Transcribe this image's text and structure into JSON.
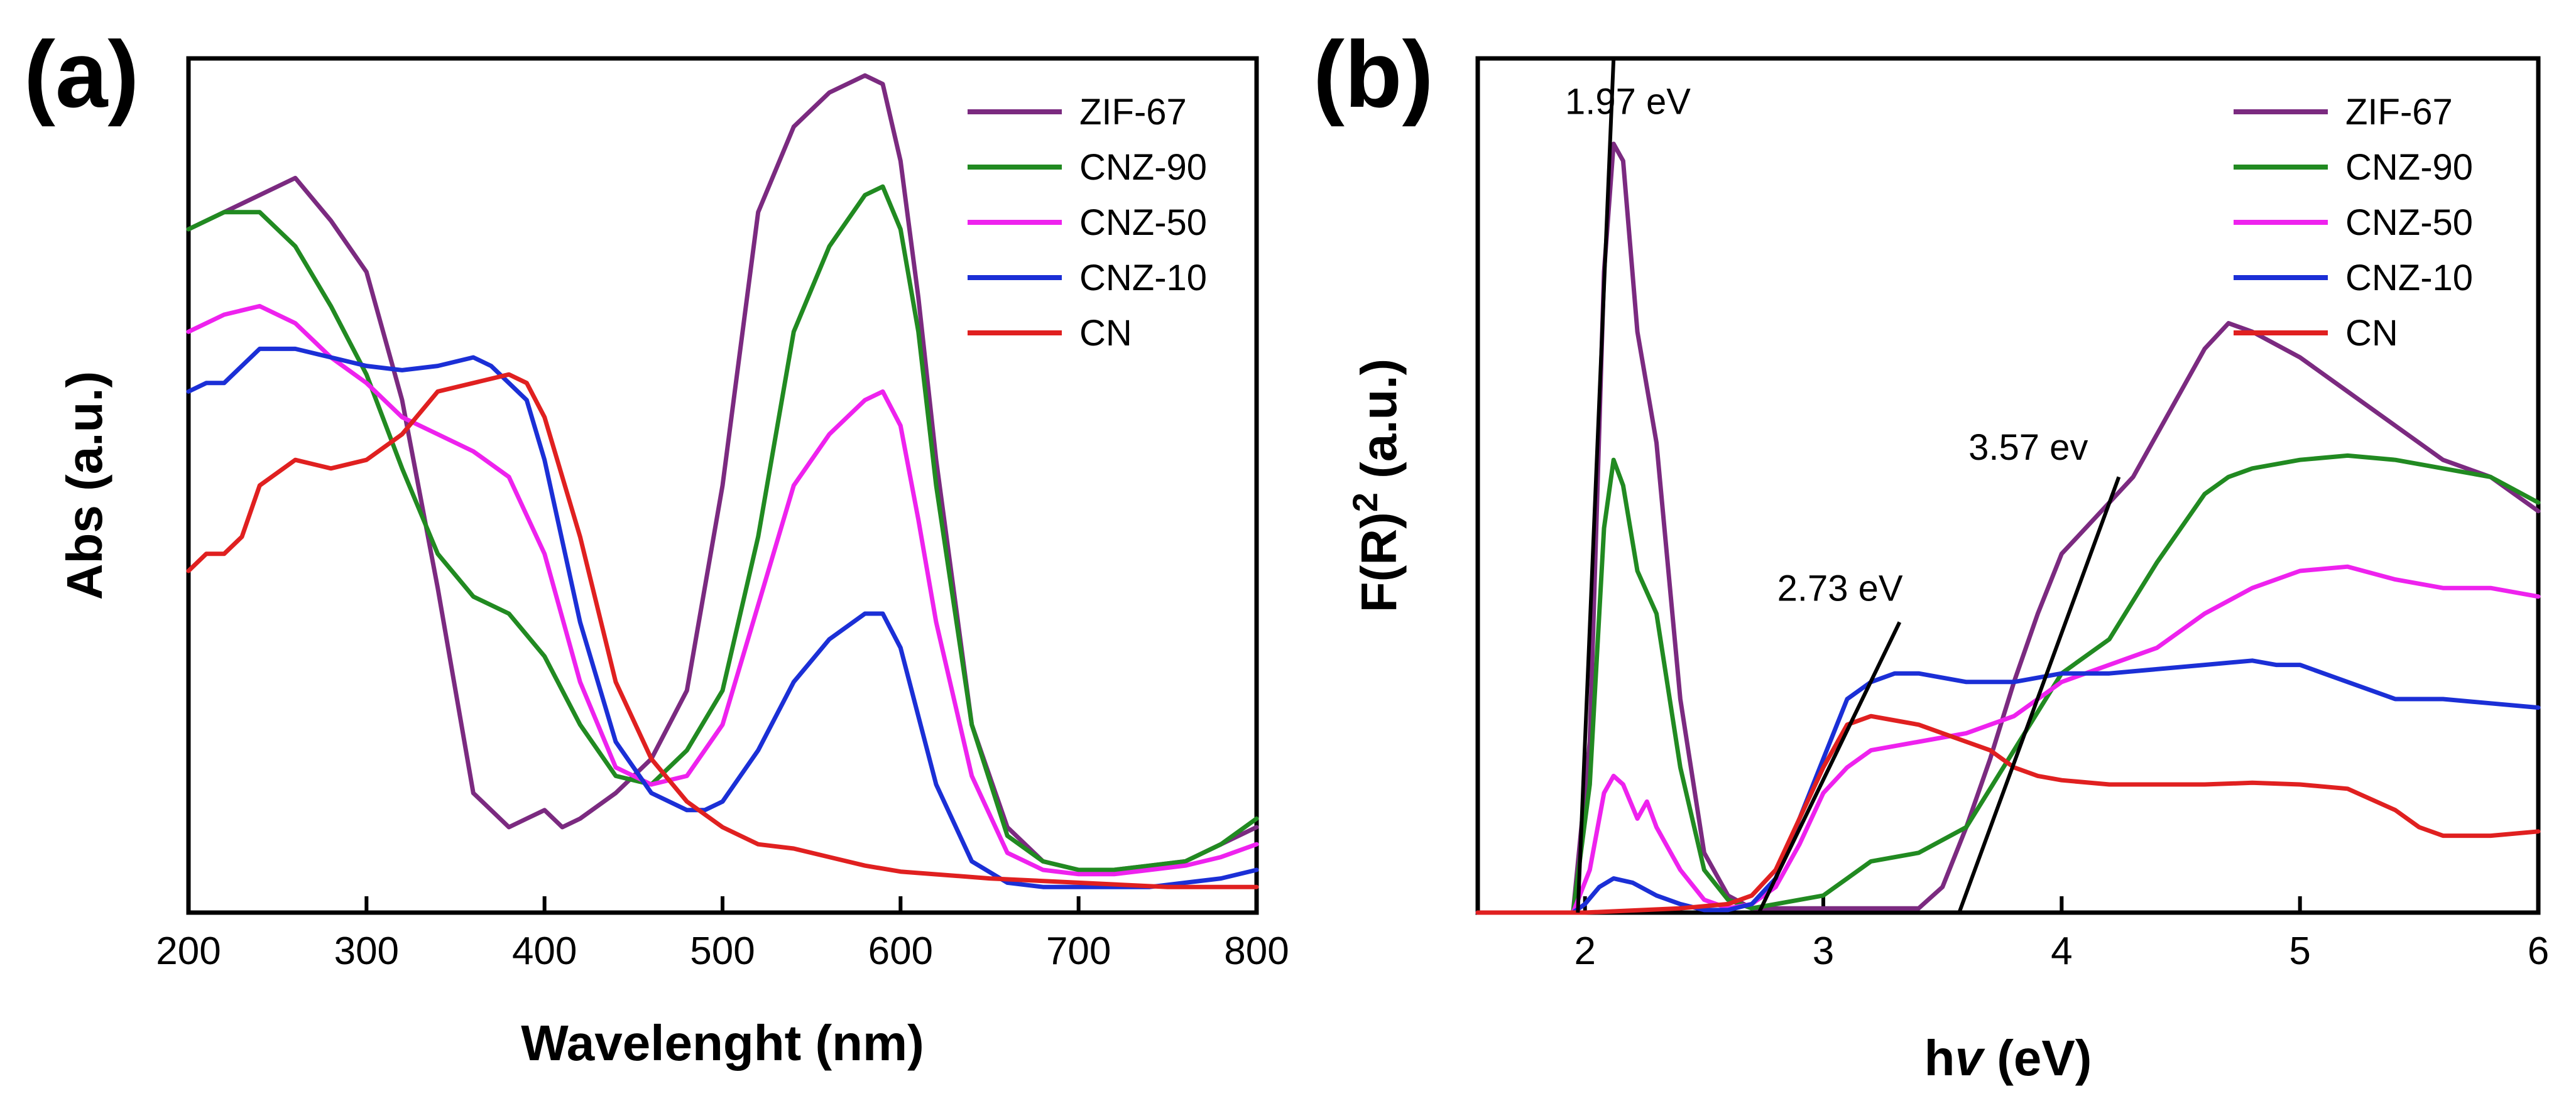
{
  "chart_data": [
    {
      "panel": "(a)",
      "type": "line",
      "xlabel": "Wavelenght (nm)",
      "ylabel": "Abs (a.u.)",
      "xlim": [
        200,
        800
      ],
      "ylim": [
        0,
        1.0
      ],
      "xticks": [
        200,
        300,
        400,
        500,
        600,
        700,
        800
      ],
      "legend_position": "top-right",
      "series": [
        {
          "name": "ZIF-67",
          "color": "#7b2a80",
          "x": [
            200,
            230,
            260,
            280,
            300,
            320,
            340,
            360,
            380,
            390,
            400,
            410,
            420,
            440,
            460,
            480,
            500,
            520,
            540,
            560,
            580,
            590,
            600,
            610,
            620,
            640,
            660,
            680,
            700,
            720,
            740,
            760,
            780,
            800
          ],
          "y": [
            0.8,
            0.83,
            0.86,
            0.81,
            0.75,
            0.6,
            0.38,
            0.14,
            0.1,
            0.11,
            0.12,
            0.1,
            0.11,
            0.14,
            0.18,
            0.26,
            0.5,
            0.82,
            0.92,
            0.96,
            0.98,
            0.97,
            0.88,
            0.72,
            0.53,
            0.22,
            0.1,
            0.06,
            0.05,
            0.05,
            0.055,
            0.06,
            0.08,
            0.1
          ]
        },
        {
          "name": "CNZ-90",
          "color": "#218a21",
          "x": [
            200,
            220,
            240,
            260,
            280,
            300,
            320,
            340,
            360,
            380,
            400,
            420,
            440,
            460,
            480,
            500,
            520,
            540,
            560,
            580,
            590,
            600,
            610,
            620,
            640,
            660,
            680,
            700,
            720,
            740,
            760,
            780,
            800
          ],
          "y": [
            0.8,
            0.82,
            0.82,
            0.78,
            0.71,
            0.63,
            0.52,
            0.42,
            0.37,
            0.35,
            0.3,
            0.22,
            0.16,
            0.15,
            0.19,
            0.26,
            0.44,
            0.68,
            0.78,
            0.84,
            0.85,
            0.8,
            0.68,
            0.5,
            0.22,
            0.09,
            0.06,
            0.05,
            0.05,
            0.055,
            0.06,
            0.08,
            0.11
          ]
        },
        {
          "name": "CNZ-50",
          "color": "#ee22ee",
          "x": [
            200,
            220,
            240,
            260,
            280,
            300,
            320,
            340,
            360,
            380,
            400,
            420,
            440,
            460,
            480,
            500,
            520,
            540,
            560,
            580,
            590,
            600,
            610,
            620,
            640,
            660,
            680,
            700,
            720,
            740,
            760,
            780,
            800
          ],
          "y": [
            0.68,
            0.7,
            0.71,
            0.69,
            0.65,
            0.62,
            0.58,
            0.56,
            0.54,
            0.51,
            0.42,
            0.27,
            0.17,
            0.15,
            0.16,
            0.22,
            0.36,
            0.5,
            0.56,
            0.6,
            0.61,
            0.57,
            0.46,
            0.34,
            0.16,
            0.07,
            0.05,
            0.045,
            0.045,
            0.05,
            0.055,
            0.065,
            0.08
          ]
        },
        {
          "name": "CNZ-10",
          "color": "#1b2fd6",
          "x": [
            200,
            210,
            220,
            240,
            260,
            280,
            300,
            320,
            340,
            360,
            370,
            380,
            390,
            400,
            420,
            440,
            460,
            480,
            490,
            500,
            520,
            540,
            560,
            580,
            590,
            600,
            620,
            640,
            660,
            680,
            700,
            720,
            740,
            760,
            780,
            800
          ],
          "y": [
            0.61,
            0.62,
            0.62,
            0.66,
            0.66,
            0.65,
            0.64,
            0.635,
            0.64,
            0.65,
            0.64,
            0.62,
            0.6,
            0.53,
            0.34,
            0.2,
            0.14,
            0.12,
            0.12,
            0.13,
            0.19,
            0.27,
            0.32,
            0.35,
            0.35,
            0.31,
            0.15,
            0.06,
            0.035,
            0.03,
            0.03,
            0.03,
            0.03,
            0.035,
            0.04,
            0.05
          ]
        },
        {
          "name": "CN",
          "color": "#e02020",
          "x": [
            200,
            210,
            220,
            230,
            240,
            260,
            280,
            300,
            320,
            340,
            360,
            380,
            390,
            400,
            420,
            440,
            460,
            480,
            500,
            520,
            540,
            560,
            580,
            600,
            650,
            700,
            750,
            800
          ],
          "y": [
            0.4,
            0.42,
            0.42,
            0.44,
            0.5,
            0.53,
            0.52,
            0.53,
            0.56,
            0.61,
            0.62,
            0.63,
            0.62,
            0.58,
            0.44,
            0.27,
            0.18,
            0.13,
            0.1,
            0.08,
            0.075,
            0.065,
            0.055,
            0.048,
            0.04,
            0.035,
            0.03,
            0.03
          ]
        }
      ]
    },
    {
      "panel": "(b)",
      "type": "line",
      "xlabel_main": "h",
      "xlabel_symbol": "v",
      "xlabel_unit": " (eV)",
      "ylabel_main": "F(R)",
      "ylabel_sup": "2",
      "ylabel_unit": " (a.u.)",
      "xlim": [
        1.55,
        6.0
      ],
      "ylim": [
        0,
        1.0
      ],
      "xticks": [
        2,
        3,
        4,
        5,
        6
      ],
      "legend_position": "top-right",
      "annotations": [
        {
          "text": "1.97 eV",
          "at": [
            2.18,
            0.935
          ]
        },
        {
          "text": "2.73 eV",
          "at": [
            3.07,
            0.365
          ]
        },
        {
          "text": "3.57 ev",
          "at": [
            3.86,
            0.53
          ]
        }
      ],
      "tangent_lines": [
        {
          "label": "1.97 eV",
          "x": [
            1.97,
            2.12
          ],
          "y": [
            0.0,
            1.0
          ]
        },
        {
          "label": "2.73 eV",
          "x": [
            2.73,
            3.32
          ],
          "y": [
            0.0,
            0.34
          ]
        },
        {
          "label": "3.57 ev",
          "x": [
            3.57,
            4.24
          ],
          "y": [
            0.0,
            0.51
          ]
        }
      ],
      "series": [
        {
          "name": "ZIF-67",
          "color": "#7b2a80",
          "x": [
            1.55,
            1.95,
            2.02,
            2.08,
            2.12,
            2.16,
            2.22,
            2.3,
            2.4,
            2.5,
            2.6,
            2.7,
            3.0,
            3.4,
            3.5,
            3.6,
            3.7,
            3.8,
            3.9,
            4.0,
            4.1,
            4.2,
            4.3,
            4.4,
            4.5,
            4.6,
            4.7,
            4.8,
            5.0,
            5.2,
            5.4,
            5.6,
            5.8,
            6.0
          ],
          "y": [
            0.0,
            0.0,
            0.2,
            0.75,
            0.9,
            0.88,
            0.68,
            0.55,
            0.25,
            0.07,
            0.02,
            0.005,
            0.005,
            0.005,
            0.03,
            0.1,
            0.18,
            0.27,
            0.35,
            0.42,
            0.45,
            0.48,
            0.51,
            0.56,
            0.61,
            0.66,
            0.69,
            0.68,
            0.65,
            0.61,
            0.57,
            0.53,
            0.51,
            0.47
          ]
        },
        {
          "name": "CNZ-90",
          "color": "#218a21",
          "x": [
            1.55,
            1.95,
            2.02,
            2.08,
            2.12,
            2.16,
            2.22,
            2.3,
            2.4,
            2.5,
            2.6,
            2.7,
            2.8,
            3.0,
            3.1,
            3.2,
            3.4,
            3.6,
            3.8,
            4.0,
            4.2,
            4.4,
            4.6,
            4.7,
            4.8,
            5.0,
            5.2,
            5.4,
            5.6,
            5.8,
            6.0
          ],
          "y": [
            0.0,
            0.0,
            0.15,
            0.45,
            0.53,
            0.5,
            0.4,
            0.35,
            0.17,
            0.05,
            0.015,
            0.005,
            0.01,
            0.02,
            0.04,
            0.06,
            0.07,
            0.1,
            0.19,
            0.28,
            0.32,
            0.41,
            0.49,
            0.51,
            0.52,
            0.53,
            0.535,
            0.53,
            0.52,
            0.51,
            0.48
          ]
        },
        {
          "name": "CNZ-50",
          "color": "#ee22ee",
          "x": [
            1.55,
            1.95,
            2.02,
            2.08,
            2.12,
            2.16,
            2.22,
            2.26,
            2.3,
            2.4,
            2.5,
            2.6,
            2.7,
            2.8,
            2.9,
            3.0,
            3.1,
            3.2,
            3.4,
            3.6,
            3.8,
            4.0,
            4.2,
            4.4,
            4.6,
            4.8,
            5.0,
            5.2,
            5.4,
            5.6,
            5.8,
            6.0
          ],
          "y": [
            0.0,
            0.0,
            0.05,
            0.14,
            0.16,
            0.15,
            0.11,
            0.13,
            0.1,
            0.05,
            0.015,
            0.005,
            0.01,
            0.03,
            0.08,
            0.14,
            0.17,
            0.19,
            0.2,
            0.21,
            0.23,
            0.27,
            0.29,
            0.31,
            0.35,
            0.38,
            0.4,
            0.405,
            0.39,
            0.38,
            0.38,
            0.37
          ]
        },
        {
          "name": "CNZ-10",
          "color": "#1b2fd6",
          "x": [
            1.55,
            1.95,
            2.0,
            2.06,
            2.12,
            2.2,
            2.3,
            2.4,
            2.5,
            2.6,
            2.7,
            2.8,
            2.9,
            3.0,
            3.1,
            3.2,
            3.3,
            3.4,
            3.6,
            3.8,
            4.0,
            4.2,
            4.4,
            4.6,
            4.8,
            4.9,
            5.0,
            5.2,
            5.4,
            5.6,
            5.8,
            6.0
          ],
          "y": [
            0.0,
            0.0,
            0.01,
            0.03,
            0.04,
            0.035,
            0.02,
            0.01,
            0.003,
            0.003,
            0.01,
            0.04,
            0.11,
            0.18,
            0.25,
            0.27,
            0.28,
            0.28,
            0.27,
            0.27,
            0.28,
            0.28,
            0.285,
            0.29,
            0.295,
            0.29,
            0.29,
            0.27,
            0.25,
            0.25,
            0.245,
            0.24
          ]
        },
        {
          "name": "CN",
          "color": "#e02020",
          "x": [
            1.55,
            2.0,
            2.4,
            2.6,
            2.7,
            2.8,
            2.9,
            3.0,
            3.1,
            3.2,
            3.3,
            3.4,
            3.5,
            3.6,
            3.7,
            3.8,
            3.9,
            4.0,
            4.2,
            4.4,
            4.6,
            4.8,
            5.0,
            5.2,
            5.4,
            5.5,
            5.6,
            5.8,
            6.0
          ],
          "y": [
            0.0,
            0.0,
            0.005,
            0.01,
            0.02,
            0.05,
            0.11,
            0.17,
            0.22,
            0.23,
            0.225,
            0.22,
            0.21,
            0.2,
            0.19,
            0.17,
            0.16,
            0.155,
            0.15,
            0.15,
            0.15,
            0.152,
            0.15,
            0.145,
            0.12,
            0.1,
            0.09,
            0.09,
            0.095
          ]
        }
      ]
    }
  ]
}
